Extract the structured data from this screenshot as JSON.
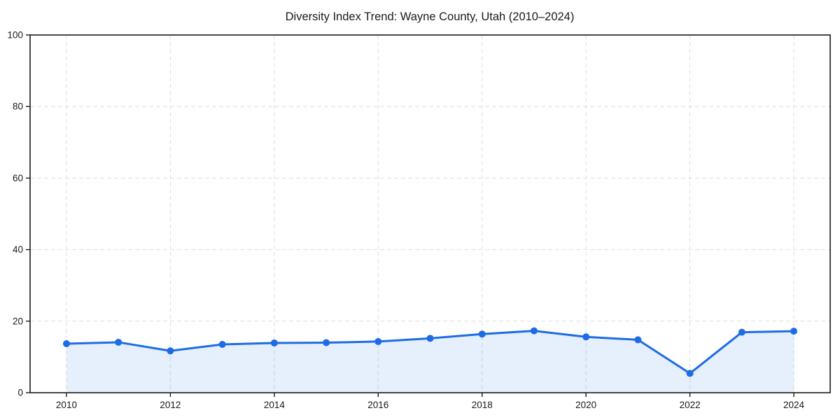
{
  "chart_data": {
    "type": "area",
    "title": "Diversity Index Trend: Wayne County, Utah (2010–2024)",
    "x": [
      2010,
      2011,
      2012,
      2013,
      2014,
      2015,
      2016,
      2017,
      2018,
      2019,
      2020,
      2021,
      2022,
      2023,
      2024
    ],
    "values": [
      13.7,
      14.1,
      11.7,
      13.5,
      13.9,
      14.0,
      14.3,
      15.2,
      16.4,
      17.3,
      15.6,
      14.8,
      5.4,
      16.9,
      17.2
    ],
    "xlabel": "",
    "ylabel": "",
    "xlim": [
      2009.3,
      2024.7
    ],
    "ylim": [
      0,
      100
    ],
    "xticks": [
      2010,
      2012,
      2014,
      2016,
      2018,
      2020,
      2022,
      2024
    ],
    "yticks": [
      0,
      20,
      40,
      60,
      80,
      100
    ],
    "grid": true,
    "grid_style": "dashed",
    "legend": false,
    "colors": {
      "line": "#1e6ce4",
      "marker": "#1e6ce4",
      "fill": "rgba(30, 108, 228, 0.11)",
      "grid": "#dedede",
      "spine": "#1a1a1a",
      "tick": "#1a1a1a",
      "text": "#1a1a1a",
      "background": "#ffffff"
    }
  }
}
